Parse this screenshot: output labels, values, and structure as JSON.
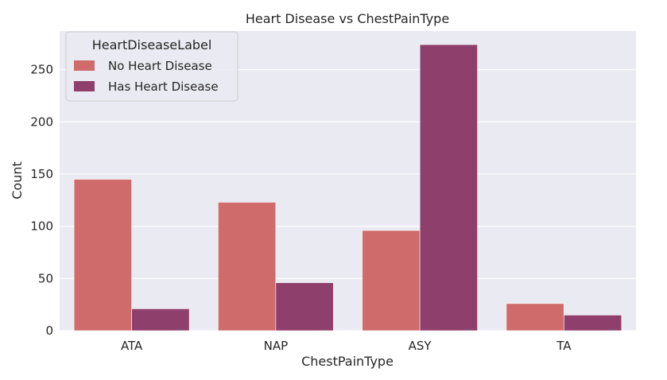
{
  "chart_data": {
    "type": "bar",
    "title": "Heart Disease vs ChestPainType",
    "xlabel": "ChestPainType",
    "ylabel": "Count",
    "categories": [
      "ATA",
      "NAP",
      "ASY",
      "TA"
    ],
    "series": [
      {
        "name": "No Heart Disease",
        "values": [
          145,
          123,
          96,
          26
        ],
        "color": "#d06b6b"
      },
      {
        "name": "Has Heart Disease",
        "values": [
          21,
          46,
          274,
          15
        ],
        "color": "#8e3f6b"
      }
    ],
    "ylim": [
      0,
      287
    ],
    "yticks": [
      0,
      50,
      100,
      150,
      200,
      250
    ],
    "grid": true,
    "background": "#eaeaf2",
    "legend": {
      "title": "HeartDiseaseLabel",
      "placement": "top-left"
    }
  }
}
